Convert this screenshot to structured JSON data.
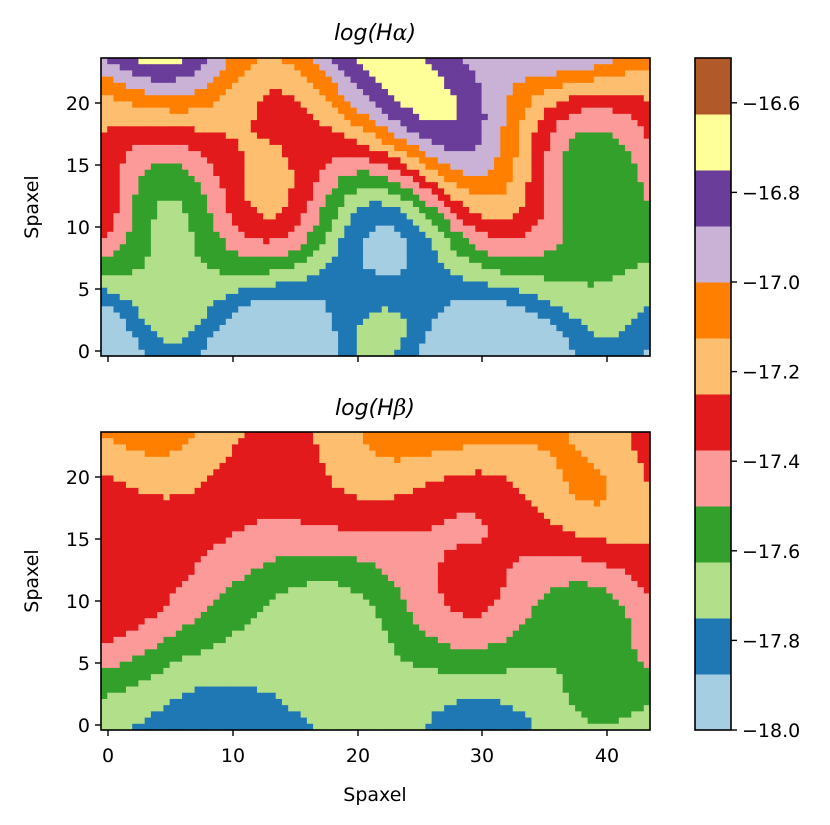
{
  "chart_data": [
    {
      "type": "heatmap",
      "title_main": "log(H",
      "title_greek": "α",
      "title_close": ")",
      "xlabel": "",
      "ylabel": "Spaxel",
      "xlim": [
        -0.5,
        43.5
      ],
      "ylim": [
        -0.5,
        23.5
      ],
      "xticks": [
        "0",
        "10",
        "20",
        "30",
        "40"
      ],
      "xtick_values": [
        0,
        10,
        20,
        30,
        40
      ],
      "xticks_visible": false,
      "yticks": [
        "0",
        "5",
        "10",
        "15",
        "20"
      ],
      "ytick_values": [
        0,
        5,
        10,
        15,
        20
      ],
      "seed": 7
    },
    {
      "type": "heatmap",
      "title_main": "log(H",
      "title_greek": "β",
      "title_close": ")",
      "xlabel": "Spaxel",
      "ylabel": "Spaxel",
      "xlim": [
        -0.5,
        43.5
      ],
      "ylim": [
        -0.5,
        23.5
      ],
      "xticks": [
        "0",
        "10",
        "20",
        "30",
        "40"
      ],
      "xtick_values": [
        0,
        10,
        20,
        30,
        40
      ],
      "xticks_visible": true,
      "yticks": [
        "0",
        "5",
        "10",
        "15",
        "20"
      ],
      "ytick_values": [
        0,
        5,
        10,
        15,
        20
      ],
      "seed": 19
    }
  ],
  "colorbar": {
    "range": [
      -18.0,
      -16.5
    ],
    "levels": [
      -18.0,
      -17.875,
      -17.75,
      -17.625,
      -17.5,
      -17.375,
      -17.25,
      -17.125,
      -17.0,
      -16.875,
      -16.75,
      -16.625,
      -16.5
    ],
    "colors": [
      "#a6cee3",
      "#1f78b4",
      "#b2df8a",
      "#33a02c",
      "#fb9a99",
      "#e31a1c",
      "#fdbf6f",
      "#ff7f00",
      "#cab2d6",
      "#6a3d9a",
      "#ffff99",
      "#b15928"
    ],
    "tick_values": [
      -18.0,
      -17.8,
      -17.6,
      -17.4,
      -17.2,
      -17.0,
      -16.8,
      -16.6
    ],
    "tick_labels": [
      "−18.0",
      "−17.8",
      "−17.6",
      "−17.4",
      "−17.2",
      "−17.0",
      "−16.8",
      "−16.6"
    ]
  }
}
